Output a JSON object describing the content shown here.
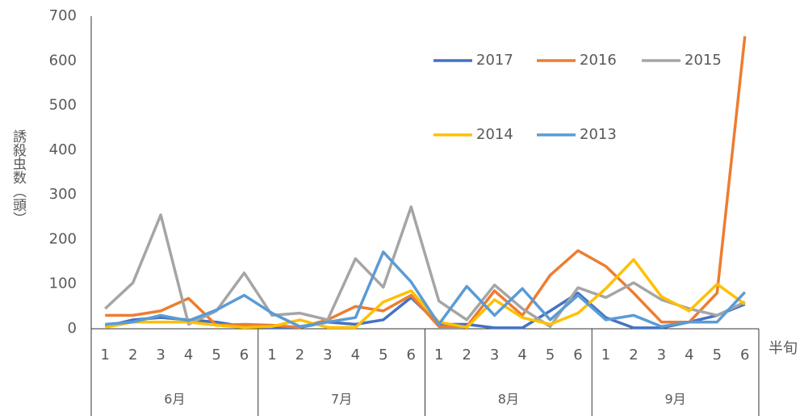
{
  "chart_data": {
    "type": "line",
    "x_label": "半旬",
    "y_label": "誘殺虫数（頭）",
    "categories": [
      "1",
      "2",
      "3",
      "4",
      "5",
      "6",
      "1",
      "2",
      "3",
      "4",
      "5",
      "6",
      "1",
      "2",
      "3",
      "4",
      "5",
      "6",
      "1",
      "2",
      "3",
      "4",
      "5",
      "6"
    ],
    "groups": [
      "6月",
      "7月",
      "8月",
      "9月"
    ],
    "ylim": [
      0,
      700
    ],
    "yticks": [
      0,
      100,
      200,
      300,
      400,
      500,
      600,
      700
    ],
    "series": [
      {
        "name": "2017",
        "color": "#4472c4",
        "values": [
          5,
          20,
          25,
          20,
          15,
          5,
          3,
          3,
          15,
          10,
          20,
          70,
          10,
          10,
          2,
          2,
          40,
          80,
          25,
          2,
          2,
          15,
          30,
          55
        ]
      },
      {
        "name": "2016",
        "color": "#ed7d31",
        "values": [
          30,
          30,
          40,
          68,
          8,
          10,
          8,
          3,
          20,
          50,
          40,
          75,
          5,
          5,
          85,
          30,
          120,
          175,
          140,
          80,
          15,
          15,
          80,
          655
        ]
      },
      {
        "name": "2015",
        "color": "#a5a5a5",
        "values": [
          45,
          103,
          255,
          10,
          40,
          125,
          30,
          35,
          20,
          157,
          93,
          273,
          62,
          20,
          98,
          45,
          5,
          92,
          70,
          103,
          65,
          45,
          30,
          60
        ]
      },
      {
        "name": "2014",
        "color": "#ffc000",
        "values": [
          3,
          15,
          15,
          15,
          8,
          3,
          5,
          20,
          3,
          3,
          60,
          85,
          15,
          3,
          65,
          25,
          10,
          35,
          90,
          155,
          72,
          40,
          100,
          55
        ]
      },
      {
        "name": "2013",
        "color": "#5b9bd5",
        "values": [
          10,
          15,
          30,
          18,
          42,
          75,
          35,
          5,
          15,
          25,
          172,
          105,
          10,
          95,
          30,
          90,
          20,
          75,
          20,
          30,
          5,
          15,
          15,
          82
        ]
      }
    ]
  }
}
